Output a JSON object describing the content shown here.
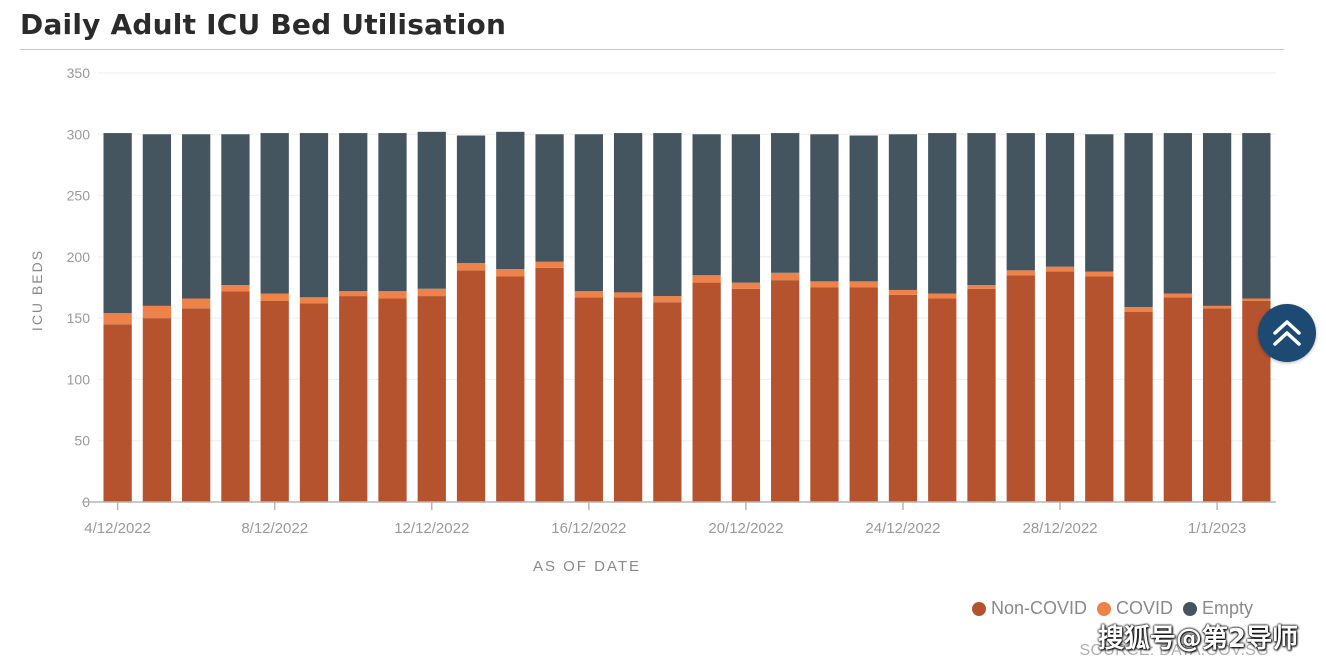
{
  "colors": {
    "non_covid": "#b5532f",
    "covid": "#ef8248",
    "empty": "#44555f",
    "scroll_button": "#1d4a72"
  },
  "legend": {
    "non_covid": "Non-COVID",
    "covid": "COVID",
    "empty": "Empty"
  },
  "source_text": "SOURCE: DATA.GOV.SG",
  "watermark_text": "搜狐号@第2导师",
  "scroll_top_icon": "chevron-up-icon",
  "chart_data": {
    "type": "bar",
    "stacked": true,
    "title": "Daily Adult ICU Bed Utilisation",
    "xlabel": "AS OF DATE",
    "ylabel": "ICU BEDS",
    "ylim": [
      0,
      350
    ],
    "yticks": [
      0,
      50,
      100,
      150,
      200,
      250,
      300,
      350
    ],
    "xtick_labels": [
      "4/12/2022",
      "8/12/2022",
      "12/12/2022",
      "16/12/2022",
      "20/12/2022",
      "24/12/2022",
      "28/12/2022",
      "1/1/2023"
    ],
    "legend_position": "bottom-right",
    "grid": true,
    "categories": [
      "4/12/2022",
      "5/12/2022",
      "6/12/2022",
      "7/12/2022",
      "8/12/2022",
      "9/12/2022",
      "10/12/2022",
      "11/12/2022",
      "12/12/2022",
      "13/12/2022",
      "14/12/2022",
      "15/12/2022",
      "16/12/2022",
      "17/12/2022",
      "18/12/2022",
      "19/12/2022",
      "20/12/2022",
      "21/12/2022",
      "22/12/2022",
      "23/12/2022",
      "24/12/2022",
      "25/12/2022",
      "26/12/2022",
      "27/12/2022",
      "28/12/2022",
      "29/12/2022",
      "30/12/2022",
      "31/12/2022",
      "1/1/2023",
      "2/1/2023"
    ],
    "series": [
      {
        "name": "Non-COVID",
        "values": [
          145,
          150,
          158,
          172,
          164,
          162,
          168,
          166,
          168,
          189,
          184,
          191,
          167,
          167,
          163,
          179,
          174,
          181,
          175,
          175,
          169,
          166,
          174,
          185,
          188,
          184,
          155,
          167,
          158,
          164
        ]
      },
      {
        "name": "COVID",
        "values": [
          9,
          10,
          8,
          5,
          6,
          5,
          4,
          6,
          6,
          6,
          6,
          5,
          5,
          4,
          5,
          6,
          5,
          6,
          5,
          5,
          4,
          4,
          3,
          4,
          4,
          4,
          4,
          3,
          2,
          2
        ]
      },
      {
        "name": "Empty",
        "values": [
          147,
          140,
          134,
          123,
          131,
          134,
          129,
          129,
          128,
          104,
          112,
          104,
          128,
          130,
          133,
          115,
          121,
          114,
          120,
          119,
          127,
          131,
          124,
          112,
          109,
          112,
          142,
          131,
          141,
          135
        ]
      }
    ]
  }
}
